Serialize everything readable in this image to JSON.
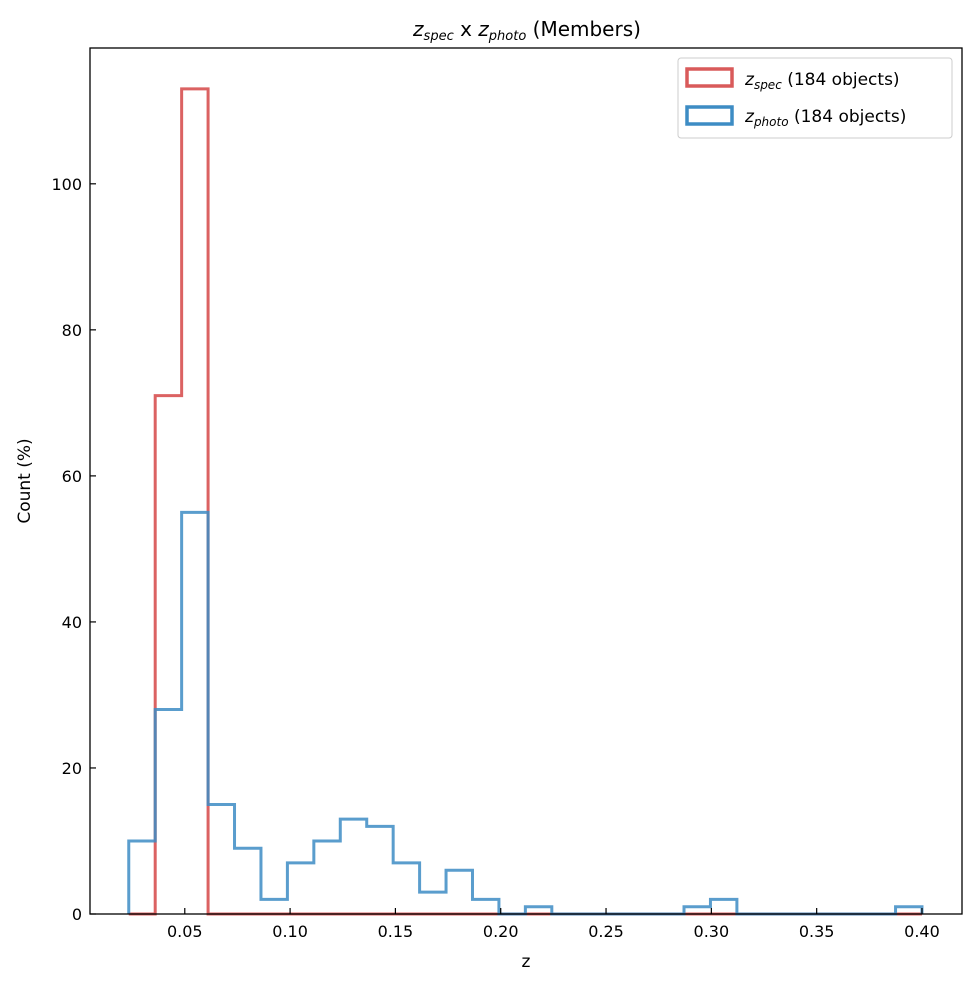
{
  "chart_data": {
    "type": "histogram",
    "title": {
      "var1": "z",
      "sub1": "spec",
      "mid": " x ",
      "var2": "z",
      "sub2": "photo",
      "rest": " (Members)"
    },
    "xlabel": "z",
    "ylabel": "Count (%)",
    "xlim": [
      0.005,
      0.419
    ],
    "ylim": [
      0,
      118.6
    ],
    "xticks": [
      0.05,
      0.1,
      0.15,
      0.2,
      0.25,
      0.3,
      0.35,
      0.4
    ],
    "xtick_labels": [
      "0.05",
      "0.10",
      "0.15",
      "0.20",
      "0.25",
      "0.30",
      "0.35",
      "0.40"
    ],
    "yticks": [
      0,
      20,
      40,
      60,
      80,
      100
    ],
    "ytick_labels": [
      "0",
      "20",
      "40",
      "60",
      "80",
      "100"
    ],
    "bin_start": 0.0234,
    "bin_end": 0.4,
    "n_bins": 30,
    "grid": false,
    "legend_position": "top-right",
    "series": [
      {
        "name": "z_spec",
        "label_var": "z",
        "label_sub": "spec",
        "label_suffix": " (184 objects)",
        "color": "#d95a5a",
        "values": [
          0,
          71,
          113,
          0,
          0,
          0,
          0,
          0,
          0,
          0,
          0,
          0,
          0,
          0,
          0,
          0,
          0,
          0,
          0,
          0,
          0,
          0,
          0,
          0,
          0,
          0,
          0,
          0,
          0,
          0
        ]
      },
      {
        "name": "z_photo",
        "label_var": "z",
        "label_sub": "photo",
        "label_suffix": " (184 objects)",
        "color": "#3d8cc4",
        "values": [
          10,
          28,
          55,
          15,
          9,
          2,
          7,
          10,
          13,
          12,
          7,
          3,
          6,
          2,
          0,
          1,
          0,
          0,
          0,
          0,
          0,
          1,
          2,
          0,
          0,
          0,
          0,
          0,
          0,
          1
        ]
      }
    ]
  }
}
